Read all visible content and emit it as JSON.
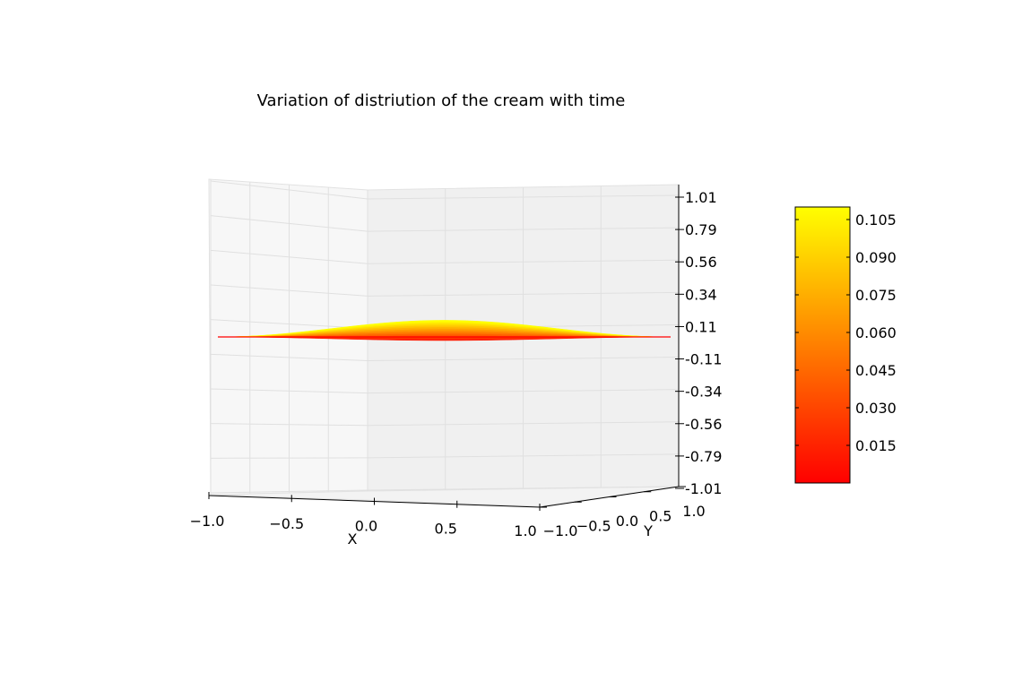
{
  "chart_data": {
    "type": "surface3d",
    "title": "Variation of distriution of the cream with time",
    "xlabel": "X",
    "ylabel": "Y",
    "zlabel": "",
    "xlim": [
      -1.0,
      1.0
    ],
    "ylim": [
      -1.0,
      1.0
    ],
    "zlim": [
      -1.01,
      1.01
    ],
    "x_ticks": [
      "−1.0",
      "−0.5",
      "0.0",
      "0.5",
      "1.0"
    ],
    "y_ticks": [
      "−1.0",
      "−0.5",
      "0.0",
      "0.5",
      "1.0"
    ],
    "z_ticks": [
      "-1.01",
      "-0.79",
      "-0.56",
      "-0.34",
      "-0.11",
      "0.11",
      "0.34",
      "0.56",
      "0.79",
      "1.01"
    ],
    "surface_peak_value": 0.11,
    "colormap": "autumn",
    "colormap_colors": [
      "#ff0000",
      "#ffff00"
    ],
    "colorbar": {
      "range": [
        0.0,
        0.11
      ],
      "ticks": [
        "0.015",
        "0.030",
        "0.045",
        "0.060",
        "0.075",
        "0.090",
        "0.105"
      ],
      "tick_values": [
        0.015,
        0.03,
        0.045,
        0.06,
        0.075,
        0.09,
        0.105
      ]
    },
    "grid": true,
    "pane_colors": [
      "#f7f7f7",
      "#f0f0f0"
    ]
  }
}
